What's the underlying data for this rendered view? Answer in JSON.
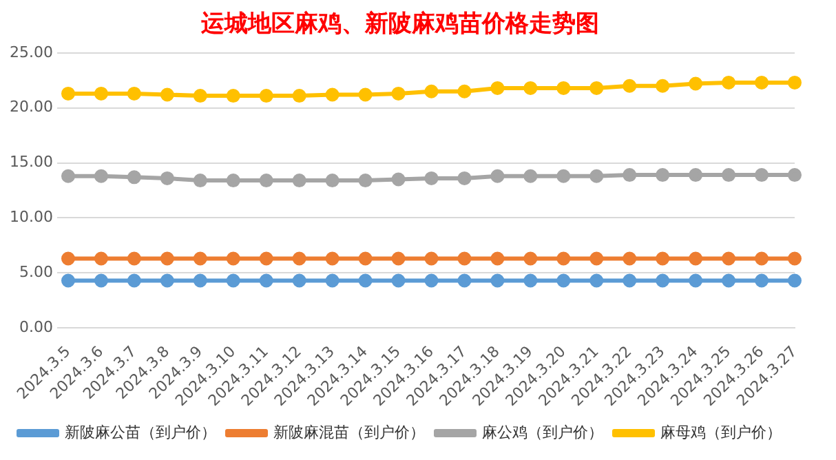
{
  "chart_data": {
    "type": "line",
    "title": "运城地区麻鸡、新陂麻鸡苗价格走势图",
    "categories": [
      "2024.3.5",
      "2024.3.6",
      "2024.3.7",
      "2024.3.8",
      "2024.3.9",
      "2024.3.10",
      "2024.3.11",
      "2024.3.12",
      "2024.3.13",
      "2024.3.14",
      "2024.3.15",
      "2024.3.16",
      "2024.3.17",
      "2024.3.18",
      "2024.3.19",
      "2024.3.20",
      "2024.3.21",
      "2024.3.22",
      "2024.3.23",
      "2024.3.24",
      "2024.3.25",
      "2024.3.26",
      "2024.3.27"
    ],
    "series": [
      {
        "name": "新陂麻公苗（到户价）",
        "color": "#5b9bd5",
        "values": [
          4.3,
          4.3,
          4.3,
          4.3,
          4.3,
          4.3,
          4.3,
          4.3,
          4.3,
          4.3,
          4.3,
          4.3,
          4.3,
          4.3,
          4.3,
          4.3,
          4.3,
          4.3,
          4.3,
          4.3,
          4.3,
          4.3,
          4.3
        ]
      },
      {
        "name": "新陂麻混苗（到户价）",
        "color": "#ed7d31",
        "values": [
          6.3,
          6.3,
          6.3,
          6.3,
          6.3,
          6.3,
          6.3,
          6.3,
          6.3,
          6.3,
          6.3,
          6.3,
          6.3,
          6.3,
          6.3,
          6.3,
          6.3,
          6.3,
          6.3,
          6.3,
          6.3,
          6.3,
          6.3
        ]
      },
      {
        "name": "麻公鸡（到户价）",
        "color": "#a5a5a5",
        "values": [
          13.8,
          13.8,
          13.7,
          13.6,
          13.4,
          13.4,
          13.4,
          13.4,
          13.4,
          13.4,
          13.5,
          13.6,
          13.6,
          13.8,
          13.8,
          13.8,
          13.8,
          13.9,
          13.9,
          13.9,
          13.9,
          13.9,
          13.9
        ]
      },
      {
        "name": "麻母鸡（到户价）",
        "color": "#ffc000",
        "values": [
          21.3,
          21.3,
          21.3,
          21.2,
          21.1,
          21.1,
          21.1,
          21.1,
          21.2,
          21.2,
          21.3,
          21.5,
          21.5,
          21.8,
          21.8,
          21.8,
          21.8,
          22.0,
          22.0,
          22.2,
          22.3,
          22.3,
          22.3
        ]
      }
    ],
    "ylim": [
      0,
      25
    ],
    "yticks": [
      {
        "value": 0,
        "label": "0.00"
      },
      {
        "value": 5,
        "label": "5.00"
      },
      {
        "value": 10,
        "label": "10.00"
      },
      {
        "value": 15,
        "label": "15.00"
      },
      {
        "value": 20,
        "label": "20.00"
      },
      {
        "value": 25,
        "label": "25.00"
      }
    ],
    "grid": "y",
    "legend": "bottom",
    "marker": "circle",
    "line_style": "solid"
  }
}
